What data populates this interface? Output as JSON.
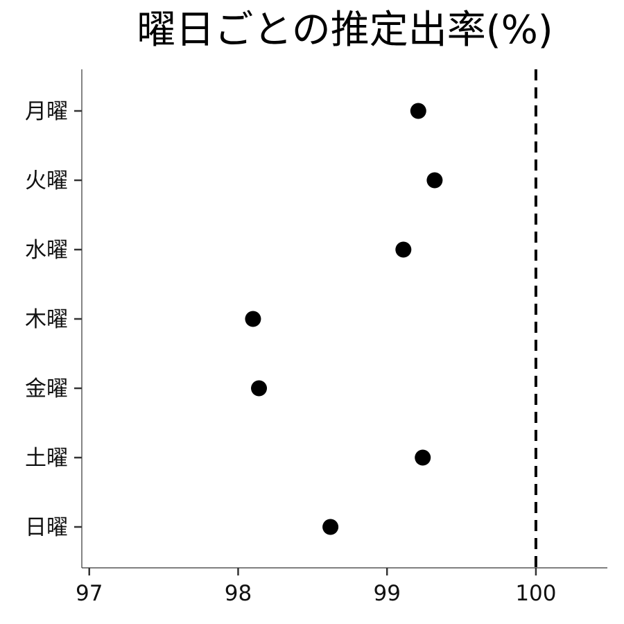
{
  "chart_data": {
    "type": "scatter",
    "title": "曜日ごとの推定出率(%)",
    "xlabel": "",
    "ylabel": "",
    "categories": [
      "月曜",
      "火曜",
      "水曜",
      "木曜",
      "金曜",
      "土曜",
      "日曜"
    ],
    "values": [
      99.21,
      99.32,
      99.11,
      98.1,
      98.14,
      99.24,
      98.62
    ],
    "x_ticks": [
      97,
      98,
      99,
      100
    ],
    "xlim": [
      96.95,
      100.48
    ],
    "reference_line": {
      "x": 100,
      "style": "dashed"
    },
    "grid": false,
    "legend": "none",
    "colors": {
      "points": "#000000",
      "axis": "#333333",
      "reference": "#000000"
    }
  }
}
